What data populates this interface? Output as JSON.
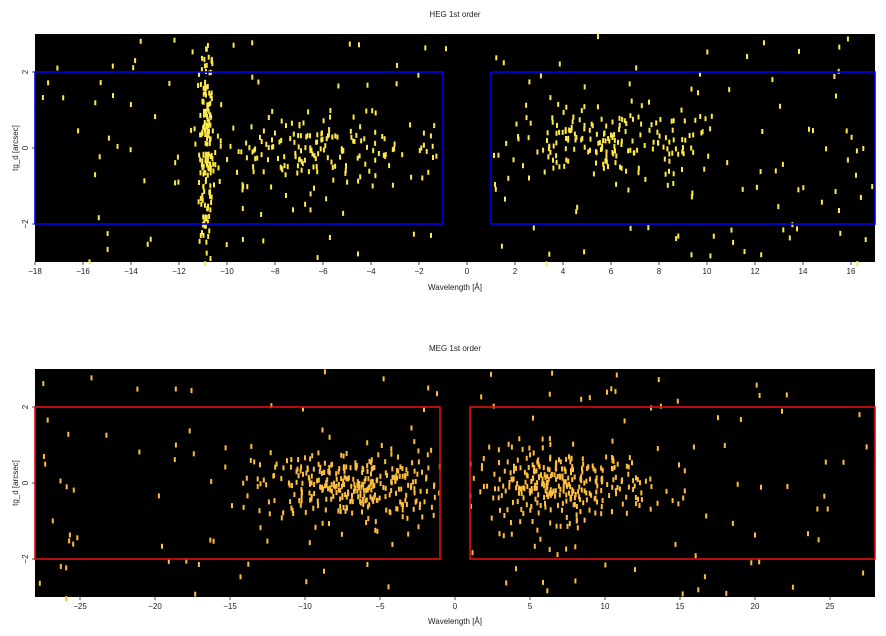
{
  "chart_data": [
    {
      "type": "heatmap",
      "title": "HEG 1st order",
      "xlabel": "Wavelength [Å]",
      "ylabel": "tg_d [arcsec]",
      "xlim": [
        -18,
        17
      ],
      "ylim": [
        -3,
        3
      ],
      "xticks": [
        -18,
        -16,
        -14,
        -12,
        -10,
        -8,
        -6,
        -4,
        -2,
        0,
        2,
        4,
        6,
        8,
        10,
        12,
        14,
        16
      ],
      "yticks": [
        -2,
        0,
        2
      ],
      "grid": false,
      "background": "#000000",
      "event_color": "#ffea4a",
      "box_color": "#0000ee",
      "extraction_regions": [
        {
          "x": [
            -18,
            -1
          ],
          "y": [
            -2,
            2
          ]
        },
        {
          "x": [
            1,
            17
          ],
          "y": [
            -2,
            2
          ]
        }
      ],
      "event_clusters": [
        {
          "x_center": -10.9,
          "x_sigma": 0.15,
          "y_sigma": 1.6,
          "count": 160
        },
        {
          "x_center": -6.5,
          "x_sigma": 2.8,
          "y_center": 0.0,
          "y_sigma": 0.45,
          "count": 190
        },
        {
          "x_center": 6.0,
          "x_sigma": 2.6,
          "y_center": 0.2,
          "y_sigma": 0.45,
          "count": 190
        },
        {
          "background_count": 170
        }
      ]
    },
    {
      "type": "heatmap",
      "title": "MEG 1st order",
      "xlabel": "Wavelength [Å]",
      "ylabel": "tg_d [arcsec]",
      "xlim": [
        -28,
        28
      ],
      "ylim": [
        -3,
        3
      ],
      "xticks": [
        -25,
        -20,
        -15,
        -10,
        -5,
        0,
        5,
        10,
        15,
        20,
        25
      ],
      "yticks": [
        -2,
        0,
        2
      ],
      "grid": false,
      "background": "#000000",
      "event_color": "#ffbe3c",
      "box_color": "#e01010",
      "extraction_regions": [
        {
          "x": [
            -28,
            -1
          ],
          "y": [
            -2,
            2
          ]
        },
        {
          "x": [
            1,
            28
          ],
          "y": [
            -2,
            2
          ]
        }
      ],
      "event_clusters": [
        {
          "x_center": -7.0,
          "x_sigma": 3.2,
          "y_center": 0.0,
          "y_sigma": 0.45,
          "count": 320
        },
        {
          "x_center": 7.0,
          "x_sigma": 3.0,
          "y_center": 0.0,
          "y_sigma": 0.45,
          "count": 320
        },
        {
          "background_count": 150
        }
      ]
    }
  ]
}
